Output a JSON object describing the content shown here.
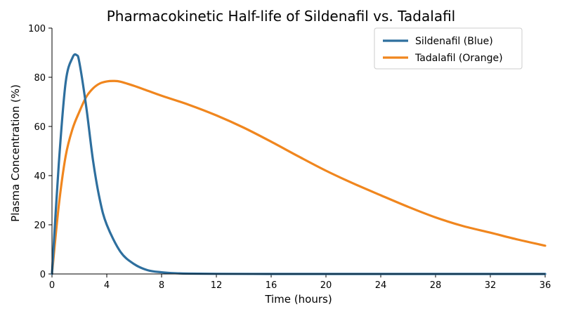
{
  "chart_data": {
    "type": "line",
    "title": "Pharmacokinetic Half-life of Sildenafil vs. Tadalafil",
    "xlabel": "Time (hours)",
    "ylabel": "Plasma Concentration (%)",
    "xlim": [
      0,
      36
    ],
    "ylim": [
      0,
      100
    ],
    "xticks": [
      0,
      4,
      8,
      12,
      16,
      20,
      24,
      28,
      32,
      36
    ],
    "yticks": [
      0,
      20,
      40,
      60,
      80,
      100
    ],
    "grid": false,
    "legend_position": "top-right",
    "series": [
      {
        "name": "Sildenafil (Blue)",
        "color": "#2e6f9e",
        "x": [
          0,
          0.5,
          1,
          1.5,
          1.8,
          2,
          2.5,
          3,
          3.5,
          4,
          5,
          6,
          7,
          8,
          9,
          10,
          12,
          16,
          20,
          24,
          28,
          32,
          36
        ],
        "y": [
          0,
          45,
          78,
          88,
          89,
          86,
          68,
          46,
          30,
          20,
          9,
          4,
          1.5,
          0.7,
          0.3,
          0.15,
          0.05,
          0,
          0,
          0,
          0,
          0,
          0
        ]
      },
      {
        "name": "Tadalafil (Orange)",
        "color": "#f0861e",
        "x": [
          0,
          0.5,
          1,
          1.5,
          2,
          2.5,
          3,
          3.5,
          4,
          4.5,
          5,
          6,
          7,
          8,
          10,
          12,
          14,
          16,
          18,
          20,
          22,
          24,
          26,
          28,
          30,
          32,
          34,
          36
        ],
        "y": [
          0,
          28,
          48,
          59,
          66,
          72,
          75.5,
          77.5,
          78.3,
          78.5,
          78.2,
          76.5,
          74.5,
          72.5,
          68.8,
          64.5,
          59.5,
          53.8,
          47.8,
          42,
          36.8,
          32,
          27.3,
          23,
          19.5,
          16.8,
          14,
          11.5
        ]
      }
    ]
  }
}
